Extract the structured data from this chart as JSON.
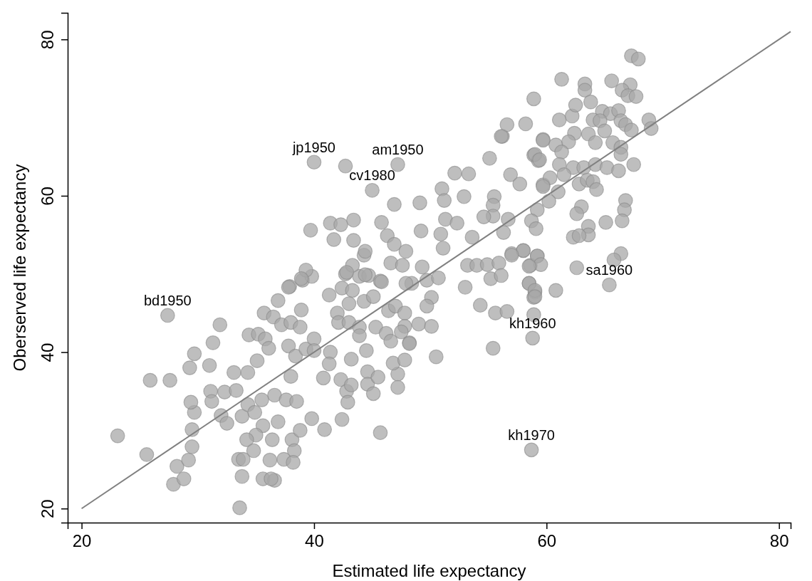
{
  "chart_data": {
    "type": "scatter",
    "xlabel": "Estimated life expectancy",
    "ylabel": "Oberserved life expectancy",
    "xlim": [
      18.8,
      81
    ],
    "ylim": [
      18.2,
      83.4
    ],
    "xticks": [
      20,
      40,
      60,
      80
    ],
    "yticks": [
      20,
      40,
      60,
      80
    ],
    "series": [
      {
        "marker": "circle",
        "color": "#a8a8a8",
        "x": [
          27.4,
          23.1,
          25.6,
          25.9,
          27.6,
          27.9,
          28.2,
          28.8,
          29.2,
          29.5,
          29.5,
          29.7,
          29.4,
          29.3,
          29.7,
          31.0,
          31.3,
          31.9,
          31.1,
          31.2,
          32.3,
          32.0,
          32.5,
          33.3,
          33.8,
          33.1,
          34.3,
          34.4,
          35.2,
          35.8,
          35.1,
          36.1,
          35.7,
          36.5,
          36.9,
          37.2,
          38.0,
          38.8,
          38.9,
          37.9,
          39.0,
          39.8,
          37.8,
          38.4,
          39.3,
          40.0,
          40.0,
          38.0,
          36.6,
          35.5,
          34.3,
          34.9,
          37.6,
          38.5,
          35.6,
          36.9,
          35.0,
          34.2,
          36.4,
          38.1,
          38.8,
          34.8,
          38.3,
          33.5,
          33.9,
          36.2,
          37.4,
          38.2,
          33.8,
          35.6,
          36.6,
          36.3,
          33.6,
          39.8,
          40.9,
          42.4,
          45.7,
          40.8,
          42.3,
          42.8,
          42.9,
          43.2,
          44.6,
          44.6,
          45.5,
          45.1,
          47.2,
          47.2,
          46.8,
          47.8,
          43.2,
          44.5,
          41.4,
          41.3,
          41.3,
          42.4,
          43.3,
          44.3,
          45.1,
          42.0,
          42.1,
          43.0,
          43.0,
          43.9,
          43.9,
          45.3,
          46.2,
          46.6,
          46.4,
          47.0,
          47.8,
          47.8,
          47.5,
          48.2,
          48.4,
          49.0,
          43.9,
          44.7,
          45.7,
          42.7,
          40.0,
          42.7,
          47.2,
          45.0,
          46.9,
          49.1,
          39.7,
          41.4,
          42.3,
          43.4,
          41.7,
          43.4,
          45.8,
          46.3,
          46.9,
          47.9,
          44.3,
          44.4,
          46.6,
          47.6,
          49.3,
          39.3,
          37.8,
          38.9,
          43.3,
          42.8,
          44.4,
          45.8,
          47.9,
          49.7,
          50.7,
          50.1,
          49.7,
          50.1,
          50.5,
          48.2,
          52.1,
          53.3,
          51.0,
          51.2,
          52.9,
          51.3,
          52.3,
          50.9,
          51.1,
          49.2,
          55.1,
          56.2,
          59.7,
          58.9,
          59.3,
          56.9,
          57.7,
          59.7,
          55.5,
          55.4,
          55.4,
          54.6,
          56.7,
          56.3,
          53.6,
          59.2,
          58.7,
          59.1,
          57.0,
          58.0,
          59.2,
          58.6,
          53.2,
          54.0,
          54.9,
          55.9,
          55.2,
          56.1,
          53.0,
          58.5,
          59.0,
          58.9,
          54.3,
          55.6,
          56.6,
          58.9,
          58.8,
          55.4,
          61.3,
          63.3,
          63.3,
          65.6,
          67.2,
          66.5,
          67.0,
          67.7,
          67.3,
          67.9,
          58.9,
          56.6,
          58.2,
          56.1,
          59.7,
          61.1,
          62.2,
          62.5,
          63.8,
          64.8,
          65.5,
          66.2,
          64.0,
          64.6,
          66.4,
          66.8,
          67.3,
          68.8,
          69.0,
          62.4,
          63.6,
          65.0,
          60.8,
          61.9,
          64.2,
          65.7,
          66.4,
          61.3,
          59.0,
          59.4,
          61.1,
          62.3,
          63.2,
          64.2,
          65.2,
          66.2,
          67.5,
          66.4,
          61.5,
          60.3,
          59.7,
          62.8,
          63.5,
          64.0,
          64.3,
          61.0,
          60.2,
          66.8,
          66.7,
          66.5,
          65.1,
          63.6,
          63.0,
          62.6,
          63.6,
          62.3,
          62.8,
          66.4,
          65.8,
          62.6,
          65.4,
          60.8,
          59.2,
          59.5,
          58.5,
          58.0,
          57.0,
          58.5,
          59.0,
          59.0,
          58.7
        ],
        "values": [
          44.7,
          29.3,
          26.9,
          36.4,
          36.4,
          23.1,
          25.4,
          23.8,
          26.2,
          27.9,
          30.1,
          32.3,
          33.6,
          38.0,
          39.8,
          38.3,
          41.2,
          43.5,
          35.0,
          33.7,
          34.9,
          31.9,
          30.9,
          35.1,
          31.8,
          37.4,
          37.4,
          42.2,
          42.3,
          41.7,
          38.9,
          40.5,
          45.0,
          44.5,
          46.6,
          43.5,
          43.8,
          43.2,
          45.4,
          48.4,
          49.2,
          49.7,
          40.8,
          39.5,
          40.4,
          41.7,
          40.2,
          36.9,
          34.5,
          33.9,
          33.3,
          32.3,
          33.9,
          33.7,
          30.6,
          31.1,
          29.4,
          28.8,
          28.8,
          28.8,
          30.0,
          27.4,
          27.4,
          26.3,
          26.3,
          26.2,
          26.3,
          25.9,
          24.1,
          23.8,
          23.6,
          23.8,
          20.1,
          31.5,
          30.1,
          31.4,
          29.7,
          36.7,
          36.5,
          35.0,
          33.6,
          35.8,
          37.5,
          35.9,
          36.8,
          34.7,
          37.2,
          35.5,
          38.6,
          39.0,
          39.1,
          40.2,
          40.0,
          38.5,
          47.3,
          48.2,
          47.9,
          46.5,
          47.1,
          45.0,
          43.8,
          46.2,
          43.8,
          43.2,
          42.1,
          43.2,
          42.4,
          41.4,
          45.3,
          45.9,
          45.0,
          43.3,
          42.6,
          41.2,
          48.8,
          43.6,
          49.7,
          49.8,
          49.1,
          50.0,
          64.3,
          63.8,
          64.0,
          60.7,
          58.9,
          59.1,
          55.6,
          56.5,
          56.3,
          56.9,
          54.4,
          54.3,
          56.6,
          54.9,
          53.8,
          52.9,
          52.4,
          52.9,
          51.4,
          51.1,
          50.9,
          50.5,
          48.3,
          49.4,
          51.1,
          50.2,
          49.9,
          49.0,
          48.8,
          49.2,
          49.5,
          47.0,
          45.9,
          43.3,
          39.4,
          41.1,
          62.9,
          62.8,
          60.9,
          59.4,
          59.9,
          57.0,
          56.5,
          55.1,
          53.3,
          55.5,
          64.8,
          67.6,
          67.2,
          65.2,
          64.5,
          62.7,
          61.5,
          61.4,
          59.9,
          58.8,
          57.4,
          57.3,
          57.0,
          55.3,
          54.7,
          58.2,
          56.8,
          55.8,
          52.6,
          53.0,
          52.3,
          51.1,
          51.1,
          51.1,
          51.2,
          51.4,
          49.4,
          49.8,
          48.3,
          48.8,
          47.7,
          47.0,
          46.0,
          45.0,
          45.2,
          44.8,
          41.8,
          40.5,
          74.9,
          74.3,
          73.5,
          74.7,
          74.2,
          73.5,
          72.8,
          72.7,
          77.9,
          77.5,
          72.4,
          69.1,
          69.2,
          67.6,
          67.1,
          69.7,
          70.2,
          71.6,
          72.0,
          70.8,
          70.5,
          70.9,
          69.7,
          69.6,
          69.6,
          69.1,
          68.4,
          69.7,
          68.6,
          68.0,
          67.9,
          68.3,
          66.5,
          66.9,
          66.8,
          66.8,
          66.2,
          65.6,
          65.3,
          64.6,
          64.0,
          63.6,
          63.6,
          64.0,
          63.6,
          63.2,
          64.0,
          65.3,
          62.7,
          62.3,
          61.2,
          61.5,
          62.0,
          61.8,
          60.8,
          60.5,
          59.3,
          59.4,
          58.2,
          56.8,
          56.6,
          56.1,
          58.6,
          57.7,
          55.0,
          54.7,
          54.9,
          52.6,
          51.8,
          50.8,
          48.6,
          47.9,
          52.3,
          51.2,
          51.0,
          53.0,
          52.4,
          48.8,
          47.9,
          47.1,
          27.5
        ]
      },
      {
        "type": "line",
        "color": "#808080",
        "x": [
          20,
          81
        ],
        "values": [
          20,
          81
        ]
      }
    ],
    "annotations": [
      {
        "text": "jp1950",
        "x": 40.0,
        "y": 64.3
      },
      {
        "text": "am1950",
        "x": 47.2,
        "y": 64.0
      },
      {
        "text": "cv1980",
        "x": 45.0,
        "y": 60.7
      },
      {
        "text": "bd1950",
        "x": 27.4,
        "y": 44.7
      },
      {
        "text": "sa1960",
        "x": 65.4,
        "y": 48.6
      },
      {
        "text": "kh1960",
        "x": 58.8,
        "y": 41.8
      },
      {
        "text": "kh1970",
        "x": 58.7,
        "y": 27.5
      }
    ]
  }
}
